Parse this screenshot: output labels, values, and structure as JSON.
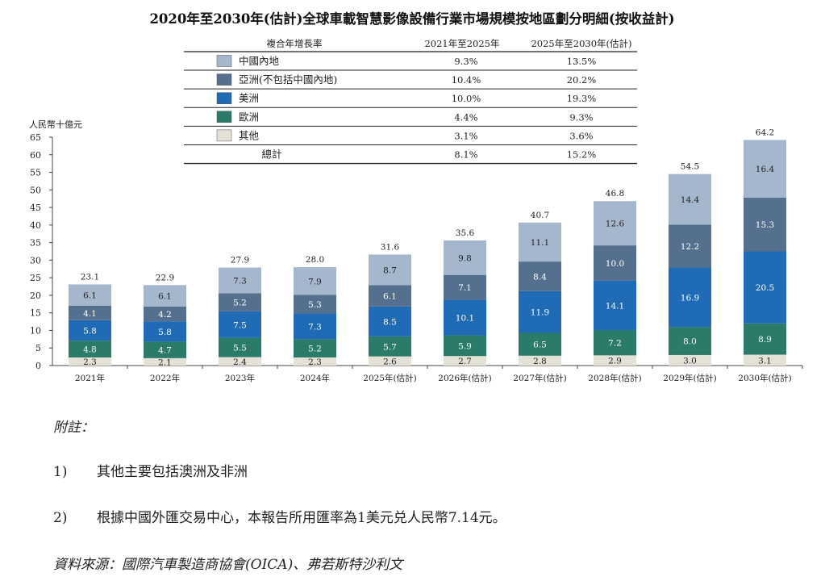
{
  "chart_data": {
    "type": "bar",
    "stacked": true,
    "title": "2020年至2030年(估計)全球車載智慧影像設備行業市場規模按地區劃分明細(按收益計)",
    "ylabel": "人民幣十億元",
    "ylim": [
      0,
      65
    ],
    "yticks": [
      "0",
      "5",
      "10",
      "15",
      "20",
      "25",
      "30",
      "35",
      "40",
      "45",
      "50",
      "55",
      "60",
      "65"
    ],
    "categories": [
      "2021年",
      "2022年",
      "2023年",
      "2024年",
      "2025年(估計)",
      "2026年(估計)",
      "2027年(估計)",
      "2028年(估計)",
      "2029年(估計)",
      "2030年(估計)"
    ],
    "totals": [
      23.1,
      22.9,
      27.9,
      28.0,
      31.6,
      35.6,
      40.7,
      46.8,
      54.5,
      64.2
    ],
    "total_labels": [
      "23.1",
      "22.9",
      "27.9",
      "28.0",
      "31.6",
      "35.6",
      "40.7",
      "46.8",
      "54.5",
      "64.2"
    ],
    "series": [
      {
        "name": "其他",
        "color": "#e4e1d6",
        "values": [
          2.3,
          2.1,
          2.4,
          2.3,
          2.6,
          2.7,
          2.8,
          2.9,
          3.0,
          3.1
        ],
        "labels": [
          "2.3",
          "2.1",
          "2.4",
          "2.3",
          "2.6",
          "2.7",
          "2.8",
          "2.9",
          "3.0",
          "3.1"
        ]
      },
      {
        "name": "歐洲",
        "color": "#2a7b6a",
        "values": [
          4.8,
          4.7,
          5.5,
          5.2,
          5.7,
          5.9,
          6.5,
          7.2,
          8.0,
          8.9
        ],
        "labels": [
          "4.8",
          "4.7",
          "5.5",
          "5.2",
          "5.7",
          "5.9",
          "6.5",
          "7.2",
          "8.0",
          "8.9"
        ]
      },
      {
        "name": "美洲",
        "color": "#1f6bb5",
        "values": [
          5.8,
          5.8,
          7.5,
          7.3,
          8.5,
          10.1,
          11.9,
          14.1,
          16.9,
          20.5
        ],
        "labels": [
          "5.8",
          "5.8",
          "7.5",
          "7.3",
          "8.5",
          "10.1",
          "11.9",
          "14.1",
          "16.9",
          "20.5"
        ]
      },
      {
        "name": "亞洲(不包括中國內地)",
        "color": "#55708f",
        "values": [
          4.1,
          4.2,
          5.2,
          5.3,
          6.1,
          7.1,
          8.4,
          10.0,
          12.2,
          15.3
        ],
        "labels": [
          "4.1",
          "4.2",
          "5.2",
          "5.3",
          "6.1",
          "7.1",
          "8.4",
          "10.0",
          "12.2",
          "15.3"
        ]
      },
      {
        "name": "中國內地",
        "color": "#a5b7cc",
        "values": [
          6.1,
          6.1,
          7.3,
          7.9,
          8.7,
          9.8,
          11.1,
          12.6,
          14.4,
          16.4
        ],
        "labels": [
          "6.1",
          "6.1",
          "7.3",
          "7.9",
          "8.7",
          "9.8",
          "11.1",
          "12.6",
          "14.4",
          "16.4"
        ]
      }
    ],
    "legend_table": {
      "header": [
        "複合年增長率",
        "2021年至2025年",
        "2025年至2030年(估計)"
      ],
      "rows": [
        {
          "name": "中國內地",
          "color": "#a5b7cc",
          "cagr_2021_2025": "9.3%",
          "cagr_2025_2030": "13.5%"
        },
        {
          "name": "亞洲(不包括中國內地)",
          "color": "#55708f",
          "cagr_2021_2025": "10.4%",
          "cagr_2025_2030": "20.2%"
        },
        {
          "name": "美洲",
          "color": "#1f6bb5",
          "cagr_2021_2025": "10.0%",
          "cagr_2025_2030": "19.3%"
        },
        {
          "name": "歐洲",
          "color": "#2a7b6a",
          "cagr_2021_2025": "4.4%",
          "cagr_2025_2030": "9.3%"
        },
        {
          "name": "其他",
          "color": "#e4e1d6",
          "cagr_2021_2025": "3.1%",
          "cagr_2025_2030": "3.6%"
        }
      ],
      "total_row": {
        "name": "總計",
        "cagr_2021_2025": "8.1%",
        "cagr_2025_2030": "15.2%"
      }
    }
  },
  "notes": {
    "heading": "附註：",
    "items": [
      {
        "num": "1)",
        "text": "其他主要包括澳洲及非洲"
      },
      {
        "num": "2)",
        "text": "根據中國外匯交易中心，本報告所用匯率為1美元兑人民幣7.14元。"
      }
    ],
    "source": "資料來源：國際汽車製造商協會(OICA)、弗若斯特沙利文"
  }
}
